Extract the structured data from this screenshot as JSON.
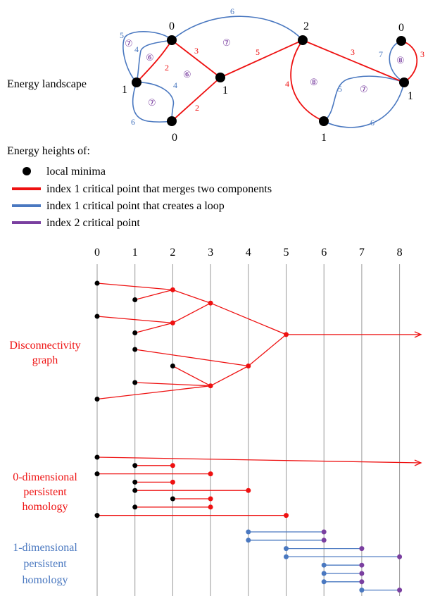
{
  "colors": {
    "minima": "#000000",
    "merge": "#ee1111",
    "loop": "#4a78c0",
    "index2": "#7a3fa0",
    "grid": "#999999"
  },
  "landscape": {
    "label": "Energy landscape",
    "nodes": [
      {
        "id": "A",
        "height": "0"
      },
      {
        "id": "B",
        "height": "1"
      },
      {
        "id": "C",
        "height": "1"
      },
      {
        "id": "D",
        "height": "0"
      },
      {
        "id": "E",
        "height": "2"
      },
      {
        "id": "F",
        "height": "1"
      },
      {
        "id": "G",
        "height": "0"
      },
      {
        "id": "H",
        "height": "1"
      }
    ],
    "edge_labels": {
      "A_C": "3",
      "B_A": "2",
      "D_C": "2",
      "C_E": "5",
      "E_F": "4",
      "E_H": "3",
      "G_H": "3",
      "A_E": "6",
      "B_D": "4",
      "B_D_outer": "6",
      "A_B_outer": "5",
      "A_B_inner": "4",
      "F_H": "5",
      "F_H_outer": "6",
      "G_H_left": "7"
    },
    "face_labels": {
      "f1": "⑦",
      "f2": "⑥",
      "f3": "⑥",
      "f4": "⑦",
      "f5": "⑦",
      "f6": "⑧",
      "f7": "⑦",
      "f8": "⑧"
    }
  },
  "legend": {
    "title": "Energy heights of:",
    "items": [
      {
        "key": "minima",
        "label": "local minima"
      },
      {
        "key": "merge",
        "label": "index 1 critical point that merges two components"
      },
      {
        "key": "loop",
        "label": "index 1 critical point that creates a loop"
      },
      {
        "key": "index2",
        "label": "index 2 critical point"
      }
    ]
  },
  "chart_data": {
    "type": "diagram",
    "x_ticks": [
      "0",
      "1",
      "2",
      "3",
      "4",
      "5",
      "6",
      "7",
      "8"
    ],
    "disconnectivity": {
      "label_line1": "Disconnectivity",
      "label_line2": "graph",
      "leaves": [
        {
          "x": 0,
          "row": 0
        },
        {
          "x": 1,
          "row": 1
        },
        {
          "x": 0,
          "row": 2
        },
        {
          "x": 1,
          "row": 3
        },
        {
          "x": 1,
          "row": 4
        },
        {
          "x": 2,
          "row": 5
        },
        {
          "x": 1,
          "row": 6
        },
        {
          "x": 0,
          "row": 7
        }
      ],
      "merges": [
        {
          "x": 2,
          "row": 0.4,
          "children": [
            "l0",
            "l1"
          ]
        },
        {
          "x": 2,
          "row": 2.4,
          "children": [
            "l2",
            "l3"
          ]
        },
        {
          "x": 3,
          "row": 1.2,
          "children": [
            "m0",
            "m1"
          ]
        },
        {
          "x": 3,
          "row": 6.2,
          "children": [
            "l5",
            "l6",
            "l7"
          ]
        },
        {
          "x": 4,
          "row": 5.0,
          "children": [
            "l4",
            "m3"
          ]
        },
        {
          "x": 5,
          "row": 3.1,
          "children": [
            "m2",
            "m4"
          ]
        }
      ],
      "root_to": "infinity"
    },
    "h0": {
      "label_line1": "0-dimensional",
      "label_line2": "persistent",
      "label_line3": "homology",
      "bars": [
        {
          "birth": 0,
          "death": "inf"
        },
        {
          "birth": 1,
          "death": 2
        },
        {
          "birth": 0,
          "death": 3
        },
        {
          "birth": 1,
          "death": 2
        },
        {
          "birth": 1,
          "death": 4
        },
        {
          "birth": 2,
          "death": 3
        },
        {
          "birth": 1,
          "death": 3
        },
        {
          "birth": 0,
          "death": 5
        }
      ]
    },
    "h1": {
      "label_line1": "1-dimensional",
      "label_line2": "persistent",
      "label_line3": "homology",
      "bars": [
        {
          "birth": 4,
          "death": 6
        },
        {
          "birth": 4,
          "death": 6
        },
        {
          "birth": 5,
          "death": 7
        },
        {
          "birth": 5,
          "death": 8
        },
        {
          "birth": 6,
          "death": 7
        },
        {
          "birth": 6,
          "death": 7
        },
        {
          "birth": 6,
          "death": 7
        },
        {
          "birth": 7,
          "death": 8
        }
      ]
    }
  }
}
